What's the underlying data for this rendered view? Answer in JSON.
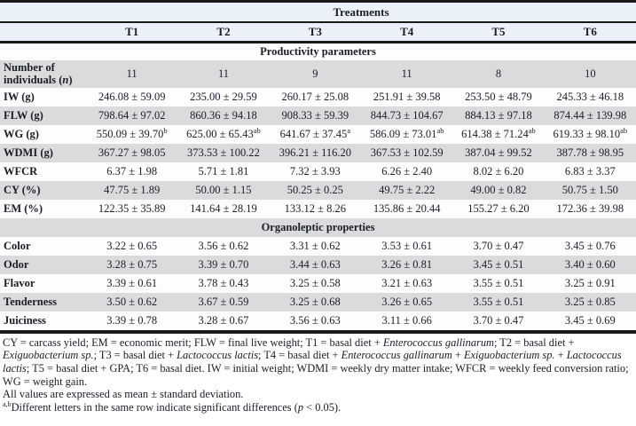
{
  "table": {
    "treatments_header": "Treatments",
    "columns": [
      "T1",
      "T2",
      "T3",
      "T4",
      "T5",
      "T6"
    ],
    "sections": [
      {
        "title": "Productivity parameters",
        "rows": [
          {
            "label": [
              {
                "t": "Number of individuals ("
              },
              {
                "t": "n",
                "i": true
              },
              {
                "t": ")"
              }
            ],
            "values": [
              {
                "t": "11"
              },
              {
                "t": "11"
              },
              {
                "t": "9"
              },
              {
                "t": "11"
              },
              {
                "t": "8"
              },
              {
                "t": "10"
              }
            ]
          },
          {
            "label": [
              {
                "t": "IW (g)"
              }
            ],
            "values": [
              {
                "t": "246.08 ± 59.09"
              },
              {
                "t": "235.00 ± 29.59"
              },
              {
                "t": "260.17 ± 25.08"
              },
              {
                "t": "251.91 ± 39.58"
              },
              {
                "t": "253.50 ± 48.79"
              },
              {
                "t": "245.33 ± 46.18"
              }
            ]
          },
          {
            "label": [
              {
                "t": "FLW (g)"
              }
            ],
            "values": [
              {
                "t": "798.64 ± 97.02"
              },
              {
                "t": "860.36 ± 94.18"
              },
              {
                "t": "908.33 ± 59.39"
              },
              {
                "t": "844.73 ± 104.67"
              },
              {
                "t": "884.13 ± 97.18"
              },
              {
                "t": "874.44 ± 139.98"
              }
            ]
          },
          {
            "label": [
              {
                "t": "WG (g)"
              }
            ],
            "values": [
              {
                "t": "550.09 ± 39.70",
                "sup": "b"
              },
              {
                "t": "625.00 ± 65.43",
                "sup": "ab"
              },
              {
                "t": "641.67 ± 37.45",
                "sup": "a"
              },
              {
                "t": "586.09 ± 73.01",
                "sup": "ab"
              },
              {
                "t": "614.38 ± 71.24",
                "sup": "ab"
              },
              {
                "t": "619.33 ± 98.10",
                "sup": "ab"
              }
            ]
          },
          {
            "label": [
              {
                "t": "WDMI (g)"
              }
            ],
            "values": [
              {
                "t": "367.27 ± 98.05"
              },
              {
                "t": "373.53 ± 100.22"
              },
              {
                "t": "396.21 ± 116.20"
              },
              {
                "t": "367.53 ± 102.59"
              },
              {
                "t": "387.04 ± 99.52"
              },
              {
                "t": "387.78 ± 98.95"
              }
            ]
          },
          {
            "label": [
              {
                "t": "WFCR"
              }
            ],
            "values": [
              {
                "t": "6.37 ± 1.98"
              },
              {
                "t": "5.71 ± 1.81"
              },
              {
                "t": "7.32 ± 3.93"
              },
              {
                "t": "6.26 ± 2.40"
              },
              {
                "t": "8.02 ± 6.20"
              },
              {
                "t": "6.83 ± 3.37"
              }
            ]
          },
          {
            "label": [
              {
                "t": "CY (%)"
              }
            ],
            "values": [
              {
                "t": "47.75 ± 1.89"
              },
              {
                "t": "50.00 ± 1.15"
              },
              {
                "t": "50.25 ± 0.25"
              },
              {
                "t": "49.75 ± 2.22"
              },
              {
                "t": "49.00 ± 0.82"
              },
              {
                "t": "50.75 ± 1.50"
              }
            ]
          },
          {
            "label": [
              {
                "t": "EM (%)"
              }
            ],
            "values": [
              {
                "t": "122.35 ± 35.89"
              },
              {
                "t": "141.64 ± 28.19"
              },
              {
                "t": "133.12 ± 8.26"
              },
              {
                "t": "135.86 ± 20.44"
              },
              {
                "t": "155.27 ± 6.20"
              },
              {
                "t": "172.36 ± 39.98"
              }
            ]
          }
        ]
      },
      {
        "title": "Organoleptic properties",
        "rows": [
          {
            "label": [
              {
                "t": "Color"
              }
            ],
            "values": [
              {
                "t": "3.22 ± 0.65"
              },
              {
                "t": "3.56 ± 0.62"
              },
              {
                "t": "3.31 ± 0.62"
              },
              {
                "t": "3.53 ± 0.61"
              },
              {
                "t": "3.70 ± 0.47"
              },
              {
                "t": "3.45 ± 0.76"
              }
            ]
          },
          {
            "label": [
              {
                "t": "Odor"
              }
            ],
            "values": [
              {
                "t": "3.28 ± 0.75"
              },
              {
                "t": "3.39 ± 0.70"
              },
              {
                "t": "3.44 ± 0.63"
              },
              {
                "t": "3.26 ± 0.81"
              },
              {
                "t": "3.45 ± 0.51"
              },
              {
                "t": "3.40 ± 0.60"
              }
            ]
          },
          {
            "label": [
              {
                "t": "Flavor"
              }
            ],
            "values": [
              {
                "t": "3.39 ± 0.61"
              },
              {
                "t": "3.78 ± 0.43"
              },
              {
                "t": "3.25 ± 0.58"
              },
              {
                "t": "3.21 ± 0.63"
              },
              {
                "t": "3.55 ± 0.51"
              },
              {
                "t": "3.25 ± 0.91"
              }
            ]
          },
          {
            "label": [
              {
                "t": "Tenderness"
              }
            ],
            "values": [
              {
                "t": "3.50 ± 0.62"
              },
              {
                "t": "3.67 ± 0.59"
              },
              {
                "t": "3.25 ± 0.68"
              },
              {
                "t": "3.26 ± 0.65"
              },
              {
                "t": "3.55 ± 0.51"
              },
              {
                "t": "3.25 ± 0.85"
              }
            ]
          },
          {
            "label": [
              {
                "t": "Juiciness"
              }
            ],
            "values": [
              {
                "t": "3.39 ± 0.78"
              },
              {
                "t": "3.28 ± 0.67"
              },
              {
                "t": "3.56 ± 0.63"
              },
              {
                "t": "3.11 ± 0.66"
              },
              {
                "t": "3.70 ± 0.47"
              },
              {
                "t": "3.45 ± 0.69"
              }
            ]
          }
        ]
      }
    ]
  },
  "footnotes": [
    {
      "segments": [
        {
          "t": "CY = carcass yield; EM = economic merit; FLW = final live weight; T1 = basal diet + "
        },
        {
          "t": "Enterococcus gallinarum",
          "i": true
        },
        {
          "t": "; T2 = basal diet + "
        },
        {
          "t": "Exiguobacterium sp.",
          "i": true
        },
        {
          "t": "; T3 = basal diet + "
        },
        {
          "t": "Lactococcus lactis",
          "i": true
        },
        {
          "t": "; T4 = basal diet + "
        },
        {
          "t": "Enterococcus gallinarum",
          "i": true
        },
        {
          "t": " + "
        },
        {
          "t": "Exiguobacterium sp.",
          "i": true
        },
        {
          "t": " + "
        },
        {
          "t": "Lactococcus lactis",
          "i": true
        },
        {
          "t": "; T5 = basal diet + GPA; T6 = basal diet. IW = initial weight; WDMI = weekly dry matter intake; WFCR = weekly feed conversion ratio; WG = weight gain."
        }
      ]
    },
    {
      "segments": [
        {
          "t": "All values are expressed as mean ± standard deviation."
        }
      ]
    },
    {
      "segments": [
        {
          "t": "a,b",
          "sup": true
        },
        {
          "t": "Different letters in the same row indicate significant differences ("
        },
        {
          "t": "p",
          "i": true
        },
        {
          "t": " < 0.05)."
        }
      ]
    }
  ],
  "colors": {
    "header_band": "#ebf1f8",
    "row_gray": "#dadbdc",
    "row_white": "#fdfdfe",
    "rule_black": "#191919",
    "text": "#1b1d27"
  }
}
